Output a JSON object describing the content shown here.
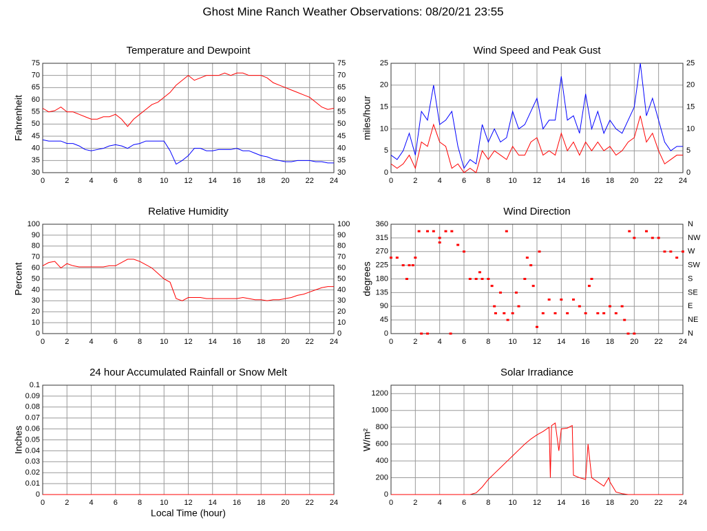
{
  "title": "Ghost Mine Ranch Weather Observations: 08/20/21 23:55",
  "chart_data": [
    {
      "type": "line",
      "title": "Temperature and Dewpoint",
      "ylabel": "Fahrenheit",
      "grid": true,
      "mirror_yticks": true,
      "xlim": [
        0,
        24
      ],
      "xticks": [
        0,
        2,
        4,
        6,
        8,
        10,
        12,
        14,
        16,
        18,
        20,
        22,
        24
      ],
      "ylim": [
        30,
        75
      ],
      "yticks": [
        30,
        35,
        40,
        45,
        50,
        55,
        60,
        65,
        70,
        75
      ],
      "x": [
        0,
        0.5,
        1,
        1.5,
        2,
        2.5,
        3,
        3.5,
        4,
        4.5,
        5,
        5.5,
        6,
        6.5,
        7,
        7.5,
        8,
        8.5,
        9,
        9.5,
        10,
        10.5,
        11,
        11.5,
        12,
        12.5,
        13,
        13.5,
        14,
        14.5,
        15,
        15.5,
        16,
        16.5,
        17,
        17.5,
        18,
        18.5,
        19,
        19.5,
        20,
        20.5,
        21,
        21.5,
        22,
        22.5,
        23,
        23.5,
        24
      ],
      "series": [
        {
          "color": "#ff0000",
          "values": [
            56.5,
            55,
            55.5,
            57,
            55,
            55,
            54,
            53,
            52,
            52,
            53,
            53,
            54,
            52,
            49,
            52,
            54,
            56,
            58,
            59,
            61,
            63,
            66,
            68,
            70,
            68,
            69,
            70,
            70,
            70,
            71,
            70,
            71,
            71,
            70,
            70,
            70,
            69,
            67,
            66,
            65,
            64,
            63,
            62,
            61,
            59,
            57,
            56,
            56.5
          ]
        },
        {
          "color": "#0000ff",
          "values": [
            43.5,
            43,
            43,
            43,
            42,
            42,
            41,
            39.5,
            39,
            39.5,
            40,
            41,
            41.5,
            41,
            40,
            41.5,
            42,
            43,
            43,
            43,
            43,
            39,
            33.5,
            35,
            37,
            40,
            40,
            39,
            39,
            39.5,
            39.5,
            39.5,
            40,
            39,
            39,
            38,
            37,
            36.5,
            35.5,
            35,
            34.5,
            34.5,
            35,
            35,
            35,
            34.5,
            34.5,
            34,
            34
          ]
        }
      ]
    },
    {
      "type": "line",
      "title": "Wind Speed and Peak Gust",
      "ylabel": "miles/hour",
      "grid": true,
      "mirror_yticks": true,
      "xlim": [
        0,
        24
      ],
      "xticks": [
        0,
        2,
        4,
        6,
        8,
        10,
        12,
        14,
        16,
        18,
        20,
        22,
        24
      ],
      "ylim": [
        0,
        25
      ],
      "yticks": [
        0,
        5,
        10,
        15,
        20,
        25
      ],
      "x": [
        0,
        0.5,
        1,
        1.5,
        2,
        2.5,
        3,
        3.5,
        4,
        4.5,
        5,
        5.5,
        6,
        6.5,
        7,
        7.5,
        8,
        8.5,
        9,
        9.5,
        10,
        10.5,
        11,
        11.5,
        12,
        12.5,
        13,
        13.5,
        14,
        14.5,
        15,
        15.5,
        16,
        16.5,
        17,
        17.5,
        18,
        18.5,
        19,
        19.5,
        20,
        20.5,
        21,
        21.5,
        22,
        22.5,
        23,
        23.5,
        24
      ],
      "series": [
        {
          "color": "#0000ff",
          "values": [
            4,
            3,
            5,
            9,
            4,
            14,
            12,
            20,
            11,
            12,
            14,
            6,
            1,
            3,
            2,
            11,
            7,
            10,
            7,
            8,
            14,
            10,
            11,
            14,
            17,
            10,
            12,
            12,
            22,
            12,
            13,
            9,
            18,
            10,
            14,
            9,
            12,
            10,
            9,
            12,
            15,
            25,
            13,
            17,
            12,
            7,
            5,
            6,
            6
          ]
        },
        {
          "color": "#ff0000",
          "values": [
            2,
            1,
            2,
            4,
            1,
            7,
            6,
            11,
            7,
            6,
            1,
            2,
            0,
            1,
            0,
            5,
            3,
            5,
            4,
            3,
            6,
            4,
            4,
            7,
            8,
            4,
            5,
            4,
            9,
            5,
            7,
            4,
            7,
            5,
            7,
            5,
            6,
            4,
            5,
            7,
            8,
            13,
            7,
            9,
            5,
            2,
            3,
            4,
            4
          ]
        }
      ]
    },
    {
      "type": "line",
      "title": "Relative Humidity",
      "ylabel": "Percent",
      "grid": true,
      "mirror_yticks": true,
      "xlim": [
        0,
        24
      ],
      "xticks": [
        0,
        2,
        4,
        6,
        8,
        10,
        12,
        14,
        16,
        18,
        20,
        22,
        24
      ],
      "ylim": [
        0,
        100
      ],
      "yticks": [
        0,
        10,
        20,
        30,
        40,
        50,
        60,
        70,
        80,
        90,
        100
      ],
      "x": [
        0,
        0.5,
        1,
        1.5,
        2,
        2.5,
        3,
        3.5,
        4,
        4.5,
        5,
        5.5,
        6,
        6.5,
        7,
        7.5,
        8,
        8.5,
        9,
        9.5,
        10,
        10.5,
        11,
        11.5,
        12,
        12.5,
        13,
        13.5,
        14,
        14.5,
        15,
        15.5,
        16,
        16.5,
        17,
        17.5,
        18,
        18.5,
        19,
        19.5,
        20,
        20.5,
        21,
        21.5,
        22,
        22.5,
        23,
        23.5,
        24
      ],
      "series": [
        {
          "color": "#ff0000",
          "values": [
            62,
            65,
            66,
            60,
            64,
            62,
            61,
            61,
            61,
            61,
            61,
            62,
            62,
            65,
            68,
            68,
            66,
            63,
            60,
            55,
            50,
            47,
            32,
            30,
            33,
            33,
            33,
            32,
            32,
            32,
            32,
            32,
            32,
            33,
            32,
            31,
            31,
            30,
            31,
            31,
            32,
            33,
            35,
            36,
            38,
            40,
            42,
            43,
            43
          ]
        }
      ]
    },
    {
      "type": "scatter",
      "title": "Wind Direction",
      "ylabel": "degrees",
      "grid": true,
      "xlim": [
        0,
        24
      ],
      "xticks": [
        0,
        2,
        4,
        6,
        8,
        10,
        12,
        14,
        16,
        18,
        20,
        22,
        24
      ],
      "ylim": [
        0,
        360
      ],
      "yticks": [
        0,
        45,
        90,
        135,
        180,
        225,
        270,
        315,
        360
      ],
      "y2lim": [
        0,
        360
      ],
      "y2ticks": [
        {
          "value": 0,
          "label": "N"
        },
        {
          "value": 45,
          "label": "NE"
        },
        {
          "value": 90,
          "label": "E"
        },
        {
          "value": 135,
          "label": "SE"
        },
        {
          "value": 180,
          "label": "S"
        },
        {
          "value": 225,
          "label": "SW"
        },
        {
          "value": 270,
          "label": "W"
        },
        {
          "value": 315,
          "label": "NW"
        },
        {
          "value": 360,
          "label": "N"
        }
      ],
      "x": [
        0,
        0.5,
        1,
        1.3,
        1.5,
        1.8,
        2,
        2.3,
        2.5,
        3,
        3,
        3.5,
        4,
        4,
        4.5,
        4.9,
        5,
        5.5,
        6,
        6.5,
        7,
        7.3,
        7.5,
        8,
        8.3,
        8.5,
        8.6,
        9,
        9.3,
        9.5,
        9.6,
        10,
        10.3,
        10.5,
        11,
        11.2,
        11.5,
        11.7,
        12,
        12.2,
        12.5,
        13,
        13.5,
        14,
        14.5,
        15,
        15.5,
        16,
        16.3,
        16.5,
        17,
        17.5,
        18,
        18.5,
        19,
        19.2,
        19.5,
        19.6,
        20,
        20,
        21,
        21.5,
        22,
        22.5,
        23,
        23.5,
        24
      ],
      "series": [
        {
          "color": "#ff0000",
          "values": [
            250,
            250,
            225,
            180,
            225,
            225,
            250,
            337,
            0,
            0,
            337,
            337,
            315,
            300,
            337,
            0,
            337,
            292,
            270,
            180,
            180,
            202,
            180,
            180,
            157,
            90,
            67,
            135,
            67,
            337,
            45,
            67,
            135,
            90,
            180,
            250,
            225,
            157,
            22,
            270,
            67,
            112,
            67,
            112,
            67,
            112,
            90,
            67,
            157,
            180,
            67,
            67,
            90,
            67,
            90,
            45,
            0,
            337,
            0,
            315,
            337,
            315,
            315,
            270,
            270,
            250,
            270
          ]
        }
      ]
    },
    {
      "type": "line",
      "title": "24 hour Accumulated Rainfall or Snow Melt",
      "ylabel": "Inches",
      "xlabel": "Local Time (hour)",
      "grid": true,
      "xlim": [
        0,
        24
      ],
      "xticks": [
        0,
        2,
        4,
        6,
        8,
        10,
        12,
        14,
        16,
        18,
        20,
        22,
        24
      ],
      "ylim": [
        0,
        0.1
      ],
      "yticks": [
        0,
        0.01,
        0.02,
        0.03,
        0.04,
        0.05,
        0.06,
        0.07,
        0.08,
        0.09,
        0.1
      ],
      "x": [
        0,
        24
      ],
      "series": [
        {
          "color": "#ff0000",
          "values": [
            0,
            0
          ]
        }
      ]
    },
    {
      "type": "line",
      "title": "Solar Irradiance",
      "ylabel": "W/m²",
      "grid": true,
      "xlim": [
        0,
        24
      ],
      "xticks": [
        0,
        2,
        4,
        6,
        8,
        10,
        12,
        14,
        16,
        18,
        20,
        22,
        24
      ],
      "ylim": [
        0,
        1300
      ],
      "yticks": [
        0,
        200,
        400,
        600,
        800,
        1000,
        1200
      ],
      "x": [
        0,
        6.5,
        7,
        7.5,
        8,
        8.5,
        9,
        9.5,
        10,
        10.5,
        11,
        11.5,
        12,
        12.5,
        13,
        13.1,
        13.2,
        13.5,
        13.8,
        14,
        14.5,
        14.9,
        15,
        15.5,
        16,
        16.2,
        16.5,
        17,
        17.5,
        17.9,
        18,
        18.5,
        19,
        19.5,
        20,
        24
      ],
      "series": [
        {
          "color": "#ff0000",
          "values": [
            0,
            0,
            20,
            90,
            180,
            250,
            320,
            390,
            460,
            530,
            600,
            660,
            710,
            750,
            800,
            200,
            820,
            850,
            520,
            780,
            790,
            820,
            230,
            200,
            180,
            600,
            200,
            150,
            100,
            200,
            150,
            30,
            10,
            0,
            0,
            0
          ]
        }
      ]
    }
  ]
}
